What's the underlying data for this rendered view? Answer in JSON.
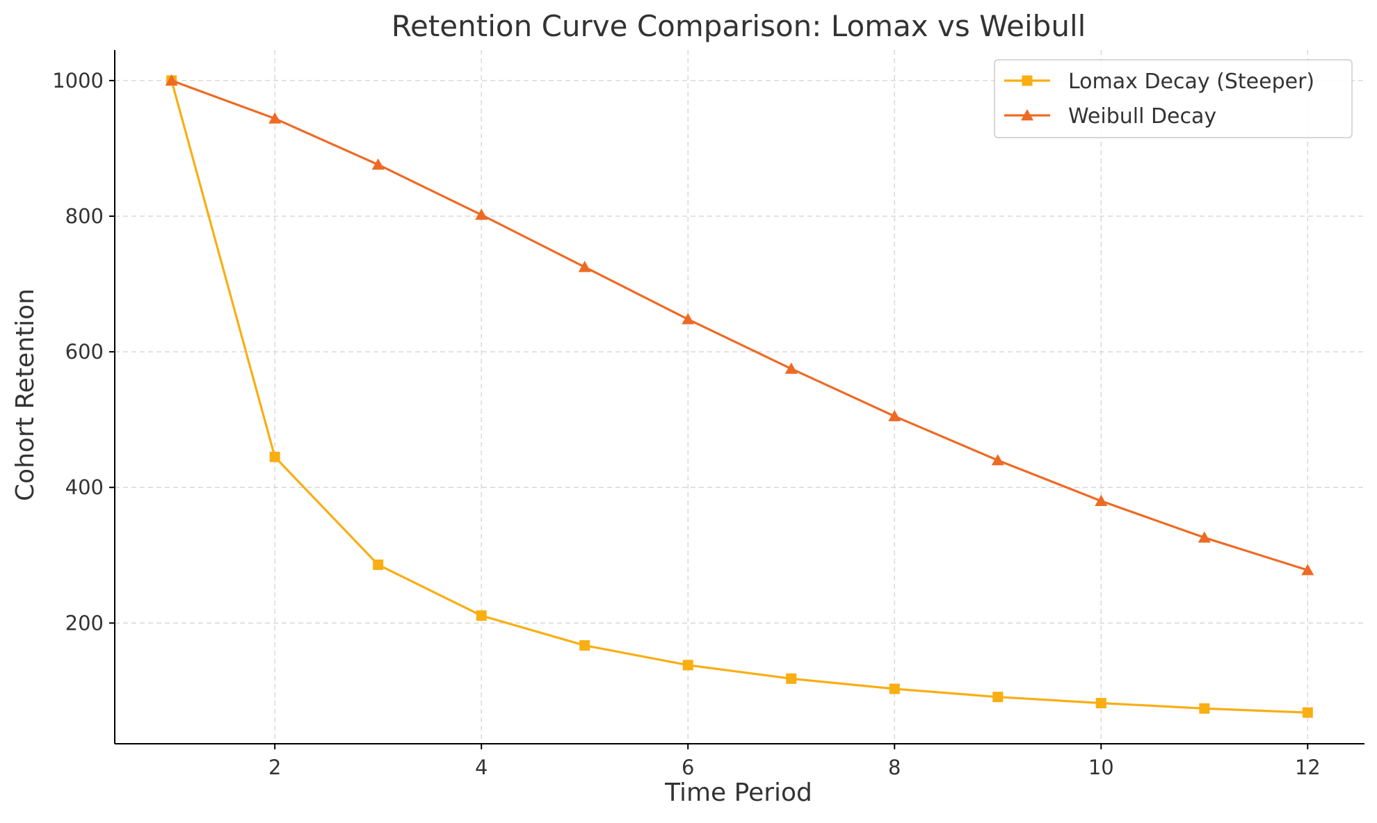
{
  "chart_data": {
    "type": "line",
    "title": "Retention Curve Comparison: Lomax vs Weibull",
    "xlabel": "Time Period",
    "ylabel": "Cohort Retention",
    "x": [
      1,
      2,
      3,
      4,
      5,
      6,
      7,
      8,
      9,
      10,
      11,
      12
    ],
    "xlim": [
      0.45,
      12.55
    ],
    "ylim": [
      22,
      1045
    ],
    "x_ticks": [
      2,
      4,
      6,
      8,
      10,
      12
    ],
    "y_ticks": [
      200,
      400,
      600,
      800,
      1000
    ],
    "grid": true,
    "legend_position": "top-right",
    "series": [
      {
        "name": "Lomax Decay (Steeper)",
        "color": "#F9AE12",
        "marker": "square",
        "values": [
          1000,
          445,
          286,
          211,
          167,
          138,
          118,
          103,
          91,
          82,
          74,
          68
        ]
      },
      {
        "name": "Weibull Decay",
        "color": "#EE6A24",
        "marker": "triangle",
        "values": [
          1000,
          944,
          876,
          802,
          725,
          648,
          575,
          505,
          440,
          380,
          326,
          278
        ]
      }
    ]
  }
}
